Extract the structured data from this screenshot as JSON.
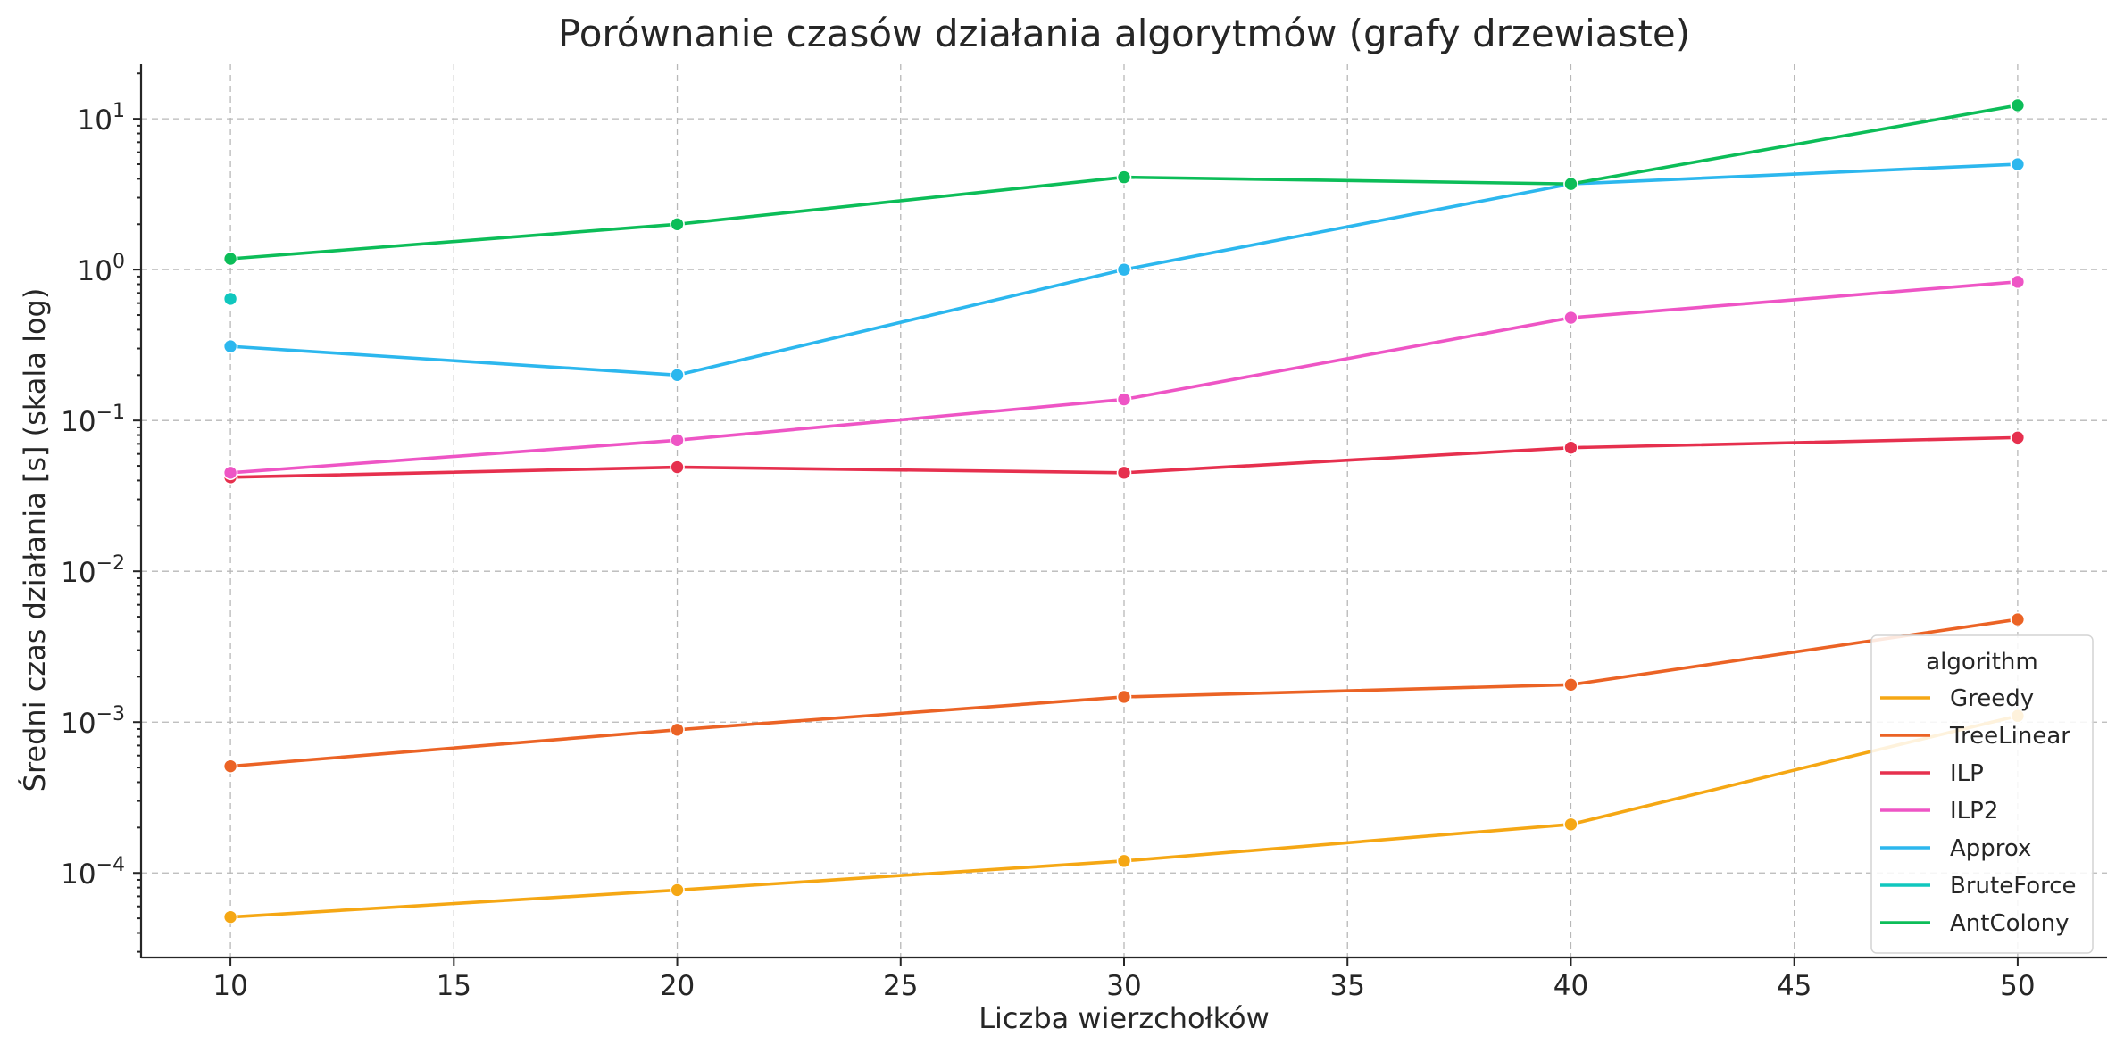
{
  "chart_data": {
    "type": "line",
    "title": "Porównanie czasów działania algorytmów (grafy drzewiaste)",
    "xlabel": "Liczba wierzchołków",
    "ylabel": "Średni czas działania [s] (skala log)",
    "xlim": [
      8,
      52
    ],
    "ylim": [
      2.75e-05,
      23
    ],
    "yscale": "log",
    "grid": true,
    "x_ticks": [
      10,
      15,
      20,
      25,
      30,
      35,
      40,
      45,
      50
    ],
    "y_ticks": [
      {
        "value": 0.0001,
        "base": "10",
        "exp": "−4"
      },
      {
        "value": 0.001,
        "base": "10",
        "exp": "−3"
      },
      {
        "value": 0.01,
        "base": "10",
        "exp": "−2"
      },
      {
        "value": 0.1,
        "base": "10",
        "exp": "−1"
      },
      {
        "value": 1,
        "base": "10",
        "exp": "0"
      },
      {
        "value": 10,
        "base": "10",
        "exp": "1"
      }
    ],
    "legend": {
      "title": "algorithm",
      "placement": "lower-right"
    },
    "series": [
      {
        "name": "Greedy",
        "color": "#F5A714",
        "x": [
          10,
          20,
          30,
          40,
          50
        ],
        "y": [
          5.1e-05,
          7.7e-05,
          0.00012,
          0.00021,
          0.0011
        ]
      },
      {
        "name": "TreeLinear",
        "color": "#EB6325",
        "x": [
          10,
          20,
          30,
          40,
          50
        ],
        "y": [
          0.00051,
          0.00089,
          0.00147,
          0.00177,
          0.0048
        ]
      },
      {
        "name": "ILP",
        "color": "#E6304E",
        "x": [
          10,
          20,
          30,
          40,
          50
        ],
        "y": [
          0.042,
          0.049,
          0.045,
          0.066,
          0.077
        ]
      },
      {
        "name": "ILP2",
        "color": "#EE55C5",
        "x": [
          10,
          20,
          30,
          40,
          50
        ],
        "y": [
          0.045,
          0.074,
          0.138,
          0.48,
          0.83
        ]
      },
      {
        "name": "Approx",
        "color": "#2CB7EE",
        "x": [
          10,
          20,
          30,
          40,
          50
        ],
        "y": [
          0.31,
          0.2,
          1.0,
          3.7,
          5.0
        ]
      },
      {
        "name": "BruteForce",
        "color": "#10C7BE",
        "x": [
          10
        ],
        "y": [
          0.64
        ]
      },
      {
        "name": "AntColony",
        "color": "#0CBD58",
        "x": [
          10,
          20,
          30,
          40,
          50
        ],
        "y": [
          1.18,
          2.0,
          4.1,
          3.7,
          12.3
        ]
      }
    ]
  }
}
